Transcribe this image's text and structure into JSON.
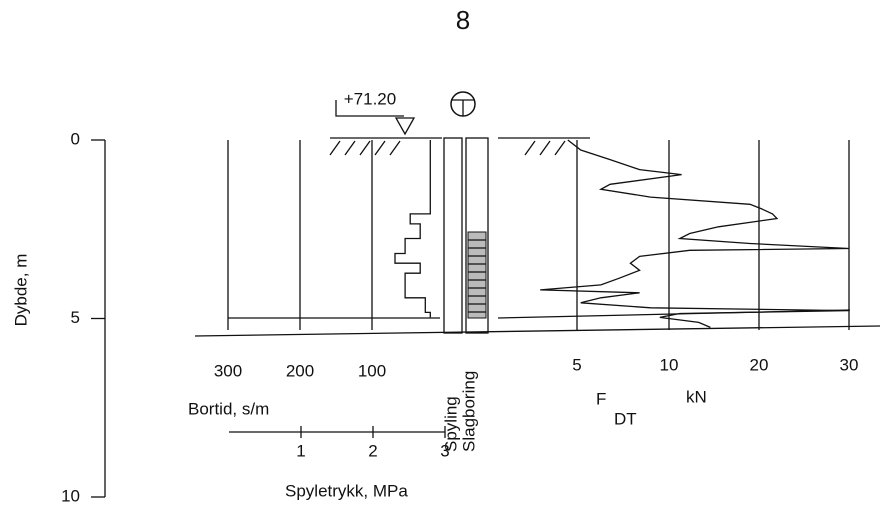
{
  "page_number": "8",
  "chart_data": {
    "type": "sounding",
    "elevation": "+71.20",
    "ylabel": "Dybde, m",
    "ylim": [
      0,
      10
    ],
    "yticks": [
      0,
      5,
      10
    ],
    "columns": [
      "Spyling",
      "Slagboring"
    ],
    "fdt": {
      "label": "F",
      "subscript": "DT",
      "unit": "kN",
      "xlim": [
        0,
        30
      ],
      "xticks": [
        5,
        10,
        20,
        30
      ],
      "depth": [
        0,
        0.28,
        0.55,
        0.83,
        0.97,
        1.24,
        1.38,
        1.6,
        1.8,
        1.93,
        2.07,
        2.2,
        2.43,
        2.62,
        2.76,
        2.9,
        3.04,
        3.09,
        3.26,
        3.45,
        3.65,
        3.87,
        4.06,
        4.2,
        4.28,
        4.42,
        4.56,
        4.7,
        4.78,
        4.86,
        4.97,
        5.11,
        5.25
      ],
      "force": [
        4.5,
        5.2,
        6.8,
        8.4,
        11.4,
        6.8,
        6.3,
        9.0,
        19,
        20.3,
        21.5,
        22,
        15.5,
        12.3,
        11.2,
        19,
        30,
        12.3,
        8.4,
        7.9,
        8.4,
        7.3,
        6.3,
        3.0,
        8.4,
        6.3,
        5.2,
        9.0,
        30,
        11.2,
        9.5,
        13.3,
        14.6
      ]
    },
    "bortid": {
      "label": "Bortid, s/m",
      "xlim": [
        0,
        300
      ],
      "xticks": [
        300,
        200,
        100
      ],
      "depth": [
        0,
        2.07,
        2.07,
        2.35,
        2.35,
        2.76,
        2.76,
        3.18,
        3.18,
        3.45,
        3.45,
        3.73,
        3.73,
        4.42,
        4.42,
        4.83,
        4.83,
        4.97
      ],
      "time": [
        19,
        19,
        47,
        47,
        33,
        33,
        54,
        54,
        68,
        68,
        33,
        33,
        54,
        54,
        26,
        26,
        19,
        19
      ]
    },
    "spyletrykk": {
      "label": "Spyletrykk, MPa",
      "xlim": [
        0,
        3
      ],
      "xticks": [
        1,
        2,
        3
      ]
    }
  }
}
